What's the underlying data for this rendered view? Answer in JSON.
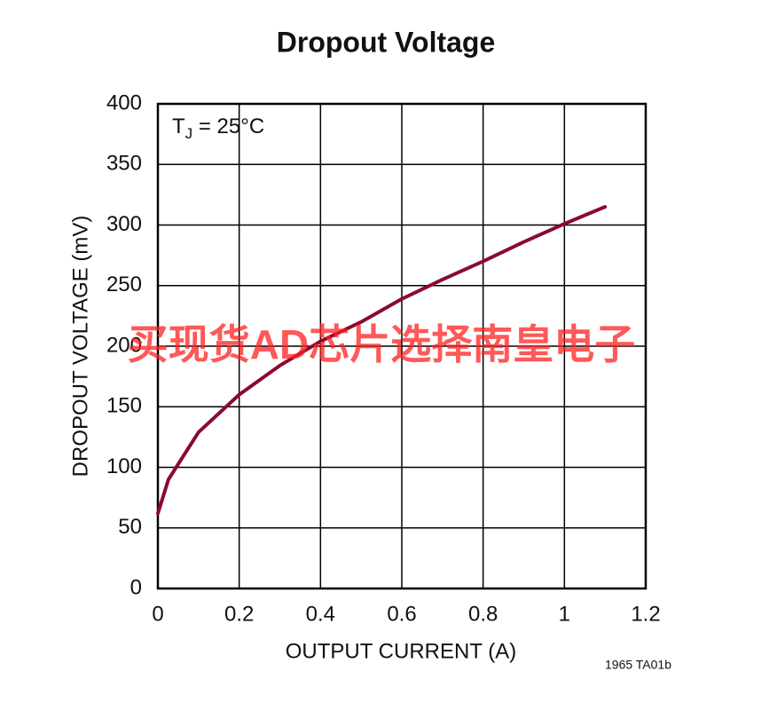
{
  "chart_data": {
    "type": "line",
    "title": "Dropout Voltage",
    "x_label": "OUTPUT CURRENT (A)",
    "y_label": "DROPOUT VOLTAGE (mV)",
    "annotation": {
      "text": "T",
      "subscript": "J",
      "suffix": " = 25°C"
    },
    "footnote": "1965 TA01b",
    "watermark": "买现货AD芯片选择南皇电子",
    "x": [
      0,
      0.026,
      0.1,
      0.2,
      0.3,
      0.4,
      0.5,
      0.6,
      0.7,
      0.8,
      0.9,
      1.0,
      1.1
    ],
    "series": [
      {
        "color": "#8b0a2e",
        "values": [
          62,
          90,
          129,
          160,
          184,
          204,
          220,
          239,
          255,
          270,
          286,
          301,
          315
        ]
      }
    ],
    "xlim": [
      0,
      1.2
    ],
    "xticks": [
      0,
      0.2,
      0.4,
      0.6,
      0.8,
      1,
      1.2
    ],
    "ylim": [
      0,
      400
    ],
    "yticks": [
      0,
      50,
      100,
      150,
      200,
      250,
      300,
      350,
      400
    ],
    "grid": true
  }
}
